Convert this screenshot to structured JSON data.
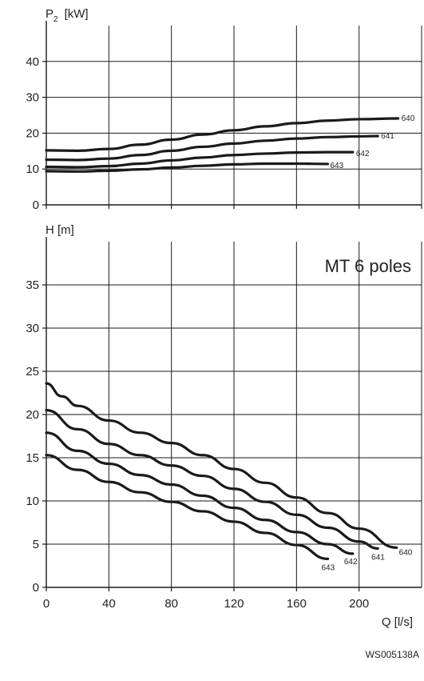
{
  "chart_data": [
    {
      "type": "line",
      "ylabel_main": "P",
      "ylabel_sub": "2",
      "ylabel_unit": "[kW]",
      "xlim": [
        0,
        240
      ],
      "ylim": [
        0,
        50
      ],
      "x_ticks": [
        0,
        40,
        80,
        120,
        160,
        200,
        240
      ],
      "y_ticks": [
        0,
        10,
        20,
        30,
        40
      ],
      "grid": true,
      "series": [
        {
          "name": "640",
          "color": "#1a1a1a",
          "x": [
            0,
            20,
            40,
            60,
            80,
            100,
            120,
            140,
            160,
            180,
            200,
            225
          ],
          "y": [
            15.2,
            15.1,
            15.6,
            16.8,
            18.2,
            19.6,
            20.8,
            21.9,
            22.8,
            23.5,
            23.9,
            24.1
          ]
        },
        {
          "name": "641",
          "color": "#1a1a1a",
          "x": [
            0,
            20,
            40,
            60,
            80,
            100,
            120,
            140,
            160,
            180,
            200,
            212
          ],
          "y": [
            12.6,
            12.5,
            12.9,
            13.9,
            15.1,
            16.2,
            17.1,
            17.9,
            18.5,
            18.9,
            19.1,
            19.2
          ]
        },
        {
          "name": "642",
          "color": "#1a1a1a",
          "x": [
            0,
            20,
            40,
            60,
            80,
            100,
            120,
            140,
            160,
            180,
            196
          ],
          "y": [
            10.6,
            10.5,
            10.8,
            11.5,
            12.4,
            13.2,
            13.9,
            14.3,
            14.6,
            14.7,
            14.7
          ]
        },
        {
          "name": "643",
          "color": "#1a1a1a",
          "x": [
            0,
            20,
            40,
            60,
            80,
            100,
            120,
            140,
            160,
            180
          ],
          "y": [
            9.4,
            9.3,
            9.5,
            9.9,
            10.4,
            10.9,
            11.3,
            11.5,
            11.5,
            11.4
          ]
        }
      ]
    },
    {
      "type": "line",
      "ylabel": "H [m]",
      "xlabel": "Q [l/s]",
      "annotation": "MT 6 poles",
      "xlim": [
        0,
        240
      ],
      "ylim": [
        0,
        40
      ],
      "x_ticks": [
        0,
        40,
        80,
        120,
        160,
        200
      ],
      "y_ticks": [
        0,
        5,
        10,
        15,
        20,
        25,
        30,
        35
      ],
      "grid": true,
      "series": [
        {
          "name": "640",
          "color": "#1a1a1a",
          "x": [
            0,
            10,
            20,
            40,
            60,
            80,
            100,
            120,
            140,
            160,
            180,
            200,
            224
          ],
          "y": [
            23.6,
            22.1,
            21.0,
            19.3,
            17.9,
            16.7,
            15.3,
            13.7,
            12.1,
            10.4,
            8.6,
            6.8,
            4.6
          ]
        },
        {
          "name": "641",
          "color": "#1a1a1a",
          "x": [
            0,
            20,
            40,
            60,
            80,
            100,
            120,
            140,
            160,
            180,
            200,
            212
          ],
          "y": [
            20.5,
            18.3,
            16.6,
            15.3,
            14.1,
            12.9,
            11.4,
            9.9,
            8.4,
            6.9,
            5.3,
            4.5
          ]
        },
        {
          "name": "642",
          "color": "#1a1a1a",
          "x": [
            0,
            20,
            40,
            60,
            80,
            100,
            120,
            140,
            160,
            180,
            196
          ],
          "y": [
            17.9,
            15.8,
            14.3,
            13.0,
            11.9,
            10.6,
            9.2,
            7.8,
            6.4,
            5.0,
            3.9
          ]
        },
        {
          "name": "643",
          "color": "#1a1a1a",
          "x": [
            0,
            20,
            40,
            60,
            80,
            100,
            120,
            140,
            160,
            180
          ],
          "y": [
            15.3,
            13.6,
            12.2,
            11.0,
            9.9,
            8.8,
            7.6,
            6.3,
            4.9,
            3.3
          ]
        }
      ]
    }
  ],
  "footer_code": "WS005138A"
}
